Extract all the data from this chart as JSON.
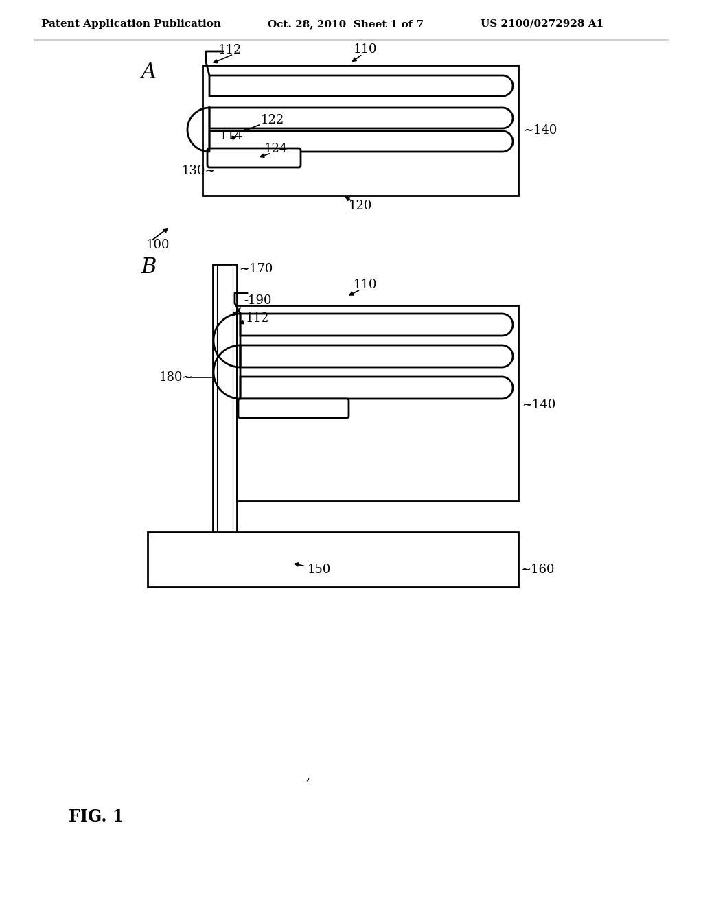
{
  "bg_color": "#ffffff",
  "line_color": "#000000",
  "header_left": "Patent Application Publication",
  "header_center": "Oct. 28, 2010  Sheet 1 of 7",
  "header_right": "US 2100/0272928 A1",
  "fig_label": "FIG. 1",
  "label_A": "A",
  "label_B": "B",
  "ref_100": "100",
  "ref_110_a": "110",
  "ref_112_a": "112",
  "ref_114": "114",
  "ref_120": "120",
  "ref_122": "122",
  "ref_124": "124",
  "ref_130": "130",
  "ref_140_a": "140",
  "ref_110_b": "110",
  "ref_112_b": "112",
  "ref_140_b": "140",
  "ref_150": "150",
  "ref_160": "160",
  "ref_170": "170",
  "ref_180": "180",
  "ref_190": "190"
}
